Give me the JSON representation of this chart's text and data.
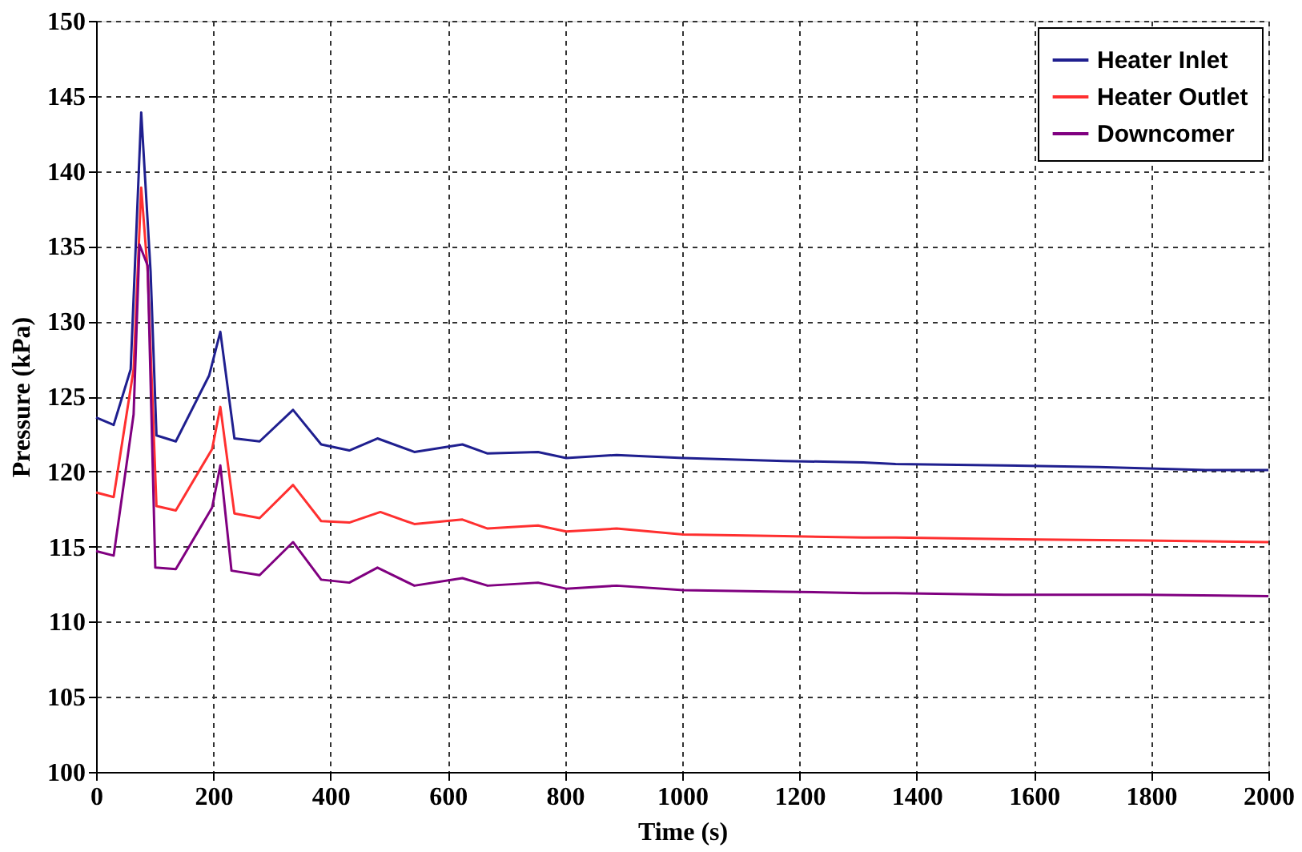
{
  "chart_data": {
    "type": "line",
    "xlabel": "Time (s)",
    "ylabel": "Pressure (kPa)",
    "xlim": [
      0,
      2000
    ],
    "xticks": [
      0,
      200,
      400,
      600,
      800,
      1000,
      1200,
      1400,
      1600,
      1800,
      2000
    ],
    "ylim": [
      100,
      150
    ],
    "yticks": [
      100,
      105,
      110,
      115,
      120,
      125,
      130,
      135,
      140,
      145,
      150
    ],
    "grid": true,
    "legend": "top right",
    "marker": "none",
    "line_style": "solid",
    "series": [
      {
        "name": "Heater Inlet",
        "color": "#1f1f8f",
        "x": [
          0,
          30,
          59,
          77,
          93,
          103,
          136,
          193,
          212,
          236,
          279,
          336,
          384,
          432,
          480,
          543,
          625,
          668,
          754,
          802,
          888,
          1002,
          1173,
          1309,
          1364,
          1549,
          1711,
          1893,
          2000
        ],
        "values": [
          123.6,
          123.1,
          126.8,
          143.9,
          133.3,
          122.4,
          122.0,
          126.4,
          129.3,
          122.2,
          122.0,
          124.1,
          121.8,
          121.4,
          122.2,
          121.3,
          121.8,
          121.2,
          121.3,
          120.9,
          121.1,
          120.9,
          120.7,
          120.6,
          120.5,
          120.4,
          120.3,
          120.1,
          120.1
        ]
      },
      {
        "name": "Heater Outlet",
        "color": "#ff3030",
        "x": [
          0,
          30,
          64,
          77,
          88,
          103,
          136,
          198,
          212,
          236,
          279,
          336,
          384,
          432,
          485,
          543,
          625,
          668,
          754,
          802,
          888,
          1002,
          1173,
          1309,
          1364,
          1549,
          1788,
          2000
        ],
        "values": [
          118.6,
          118.3,
          126.8,
          138.9,
          133.3,
          117.7,
          117.4,
          121.5,
          124.3,
          117.2,
          116.9,
          119.1,
          116.7,
          116.6,
          117.3,
          116.5,
          116.8,
          116.2,
          116.4,
          116.0,
          116.2,
          115.8,
          115.7,
          115.6,
          115.6,
          115.5,
          115.4,
          115.3
        ]
      },
      {
        "name": "Downcomer",
        "color": "#800080",
        "x": [
          0,
          30,
          64,
          74,
          88,
          101,
          136,
          198,
          212,
          231,
          279,
          336,
          384,
          432,
          480,
          543,
          625,
          668,
          754,
          802,
          888,
          1002,
          1173,
          1309,
          1364,
          1549,
          1788,
          2000
        ],
        "values": [
          114.7,
          114.4,
          123.8,
          135.1,
          133.7,
          113.6,
          113.5,
          117.6,
          120.4,
          113.4,
          113.1,
          115.3,
          112.8,
          112.6,
          113.6,
          112.4,
          112.9,
          112.4,
          112.6,
          112.2,
          112.4,
          112.1,
          112.0,
          111.9,
          111.9,
          111.8,
          111.8,
          111.7
        ]
      }
    ]
  }
}
